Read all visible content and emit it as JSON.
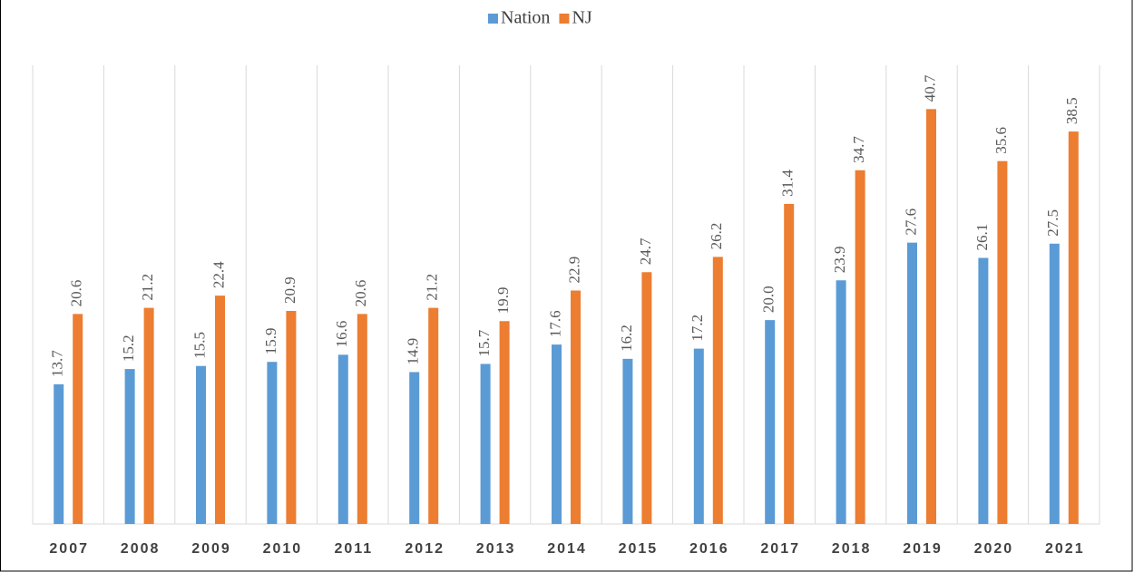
{
  "chart_data": {
    "type": "bar",
    "categories": [
      "2007",
      "2008",
      "2009",
      "2010",
      "2011",
      "2012",
      "2013",
      "2014",
      "2015",
      "2016",
      "2017",
      "2018",
      "2019",
      "2020",
      "2021"
    ],
    "series": [
      {
        "name": "Nation",
        "color": "#5b9bd5",
        "values": [
          13.7,
          15.2,
          15.5,
          15.9,
          16.6,
          14.9,
          15.7,
          17.6,
          16.2,
          17.2,
          20,
          23.9,
          27.6,
          26.1,
          27.5
        ],
        "value_labels": [
          "13.7",
          "15.2",
          "15.5",
          "15.9",
          "16.6",
          "14.9",
          "15.7",
          "17.6",
          "16.2",
          "17.2",
          "20.0",
          "23.9",
          "27.6",
          "26.1",
          "27.5"
        ]
      },
      {
        "name": "NJ",
        "color": "#ed7d31",
        "values": [
          20.6,
          21.2,
          22.4,
          20.9,
          20.6,
          21.2,
          19.9,
          22.9,
          24.7,
          26.2,
          31.4,
          34.7,
          40.7,
          35.6,
          38.5
        ]
      }
    ],
    "ylim": [
      0,
      45
    ],
    "legend": "top"
  }
}
